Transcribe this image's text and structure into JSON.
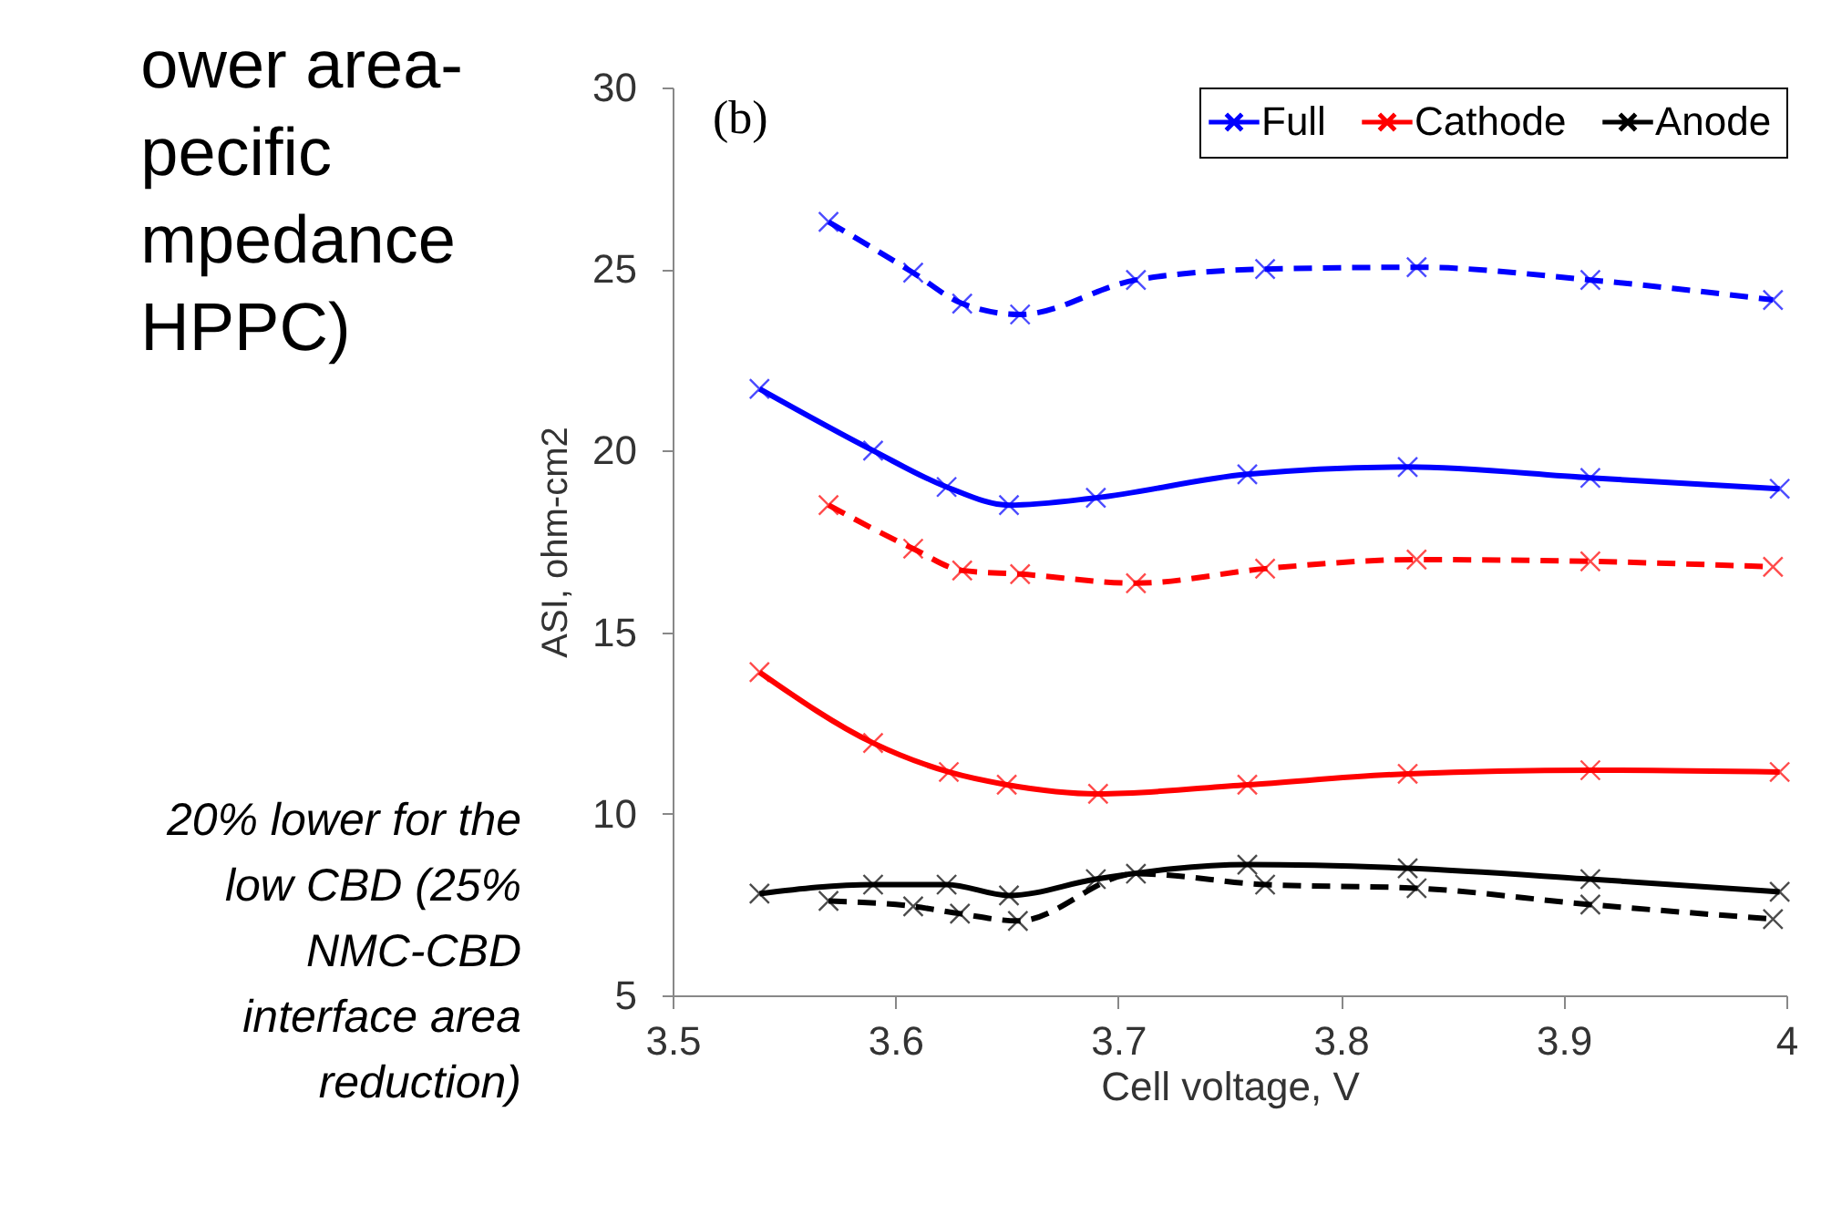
{
  "chart_data": {
    "type": "line",
    "xlabel": "Cell voltage, V",
    "ylabel": "ASI, ohm-cm2",
    "annotations": [
      "(b)",
      "ower area-\npecific\nmpedance\nHPPC)",
      "20% lower for the\nlow CBD (25%\nNMC-CBD\ninterface area\nreduction)"
    ],
    "xlim": [
      3.5,
      4
    ],
    "xticks": [
      3.5,
      3.6,
      3.7,
      3.8,
      3.9,
      4
    ],
    "ylim": [
      5,
      30
    ],
    "yticks": [
      5,
      10,
      15,
      20,
      25,
      30
    ],
    "grid": false,
    "legend": "top right",
    "marker": "cross",
    "series": [
      {
        "name": "Full",
        "color": "#0000ff",
        "line_style": "solid",
        "x": [
          3.539,
          3.59,
          3.623,
          3.651,
          3.69,
          3.758,
          3.83,
          3.912,
          3.997
        ],
        "values": [
          21.7,
          20.0,
          19.0,
          18.5,
          18.7,
          19.35,
          19.55,
          19.25,
          18.95
        ]
      },
      {
        "name": "Cathode",
        "color": "#ff0000",
        "line_style": "solid",
        "x": [
          3.539,
          3.59,
          3.624,
          3.65,
          3.691,
          3.758,
          3.83,
          3.912,
          3.997
        ],
        "values": [
          13.9,
          11.95,
          11.15,
          10.8,
          10.55,
          10.8,
          11.1,
          11.2,
          11.15
        ]
      },
      {
        "name": "Anode",
        "color": "#000000",
        "line_style": "solid",
        "x": [
          3.539,
          3.59,
          3.623,
          3.651,
          3.69,
          3.758,
          3.83,
          3.912,
          3.997
        ],
        "values": [
          7.8,
          8.05,
          8.05,
          7.75,
          8.2,
          8.6,
          8.5,
          8.2,
          7.85
        ]
      },
      {
        "color": "#0000ff",
        "line_style": "dashed",
        "x": [
          3.57,
          3.608,
          3.63,
          3.656,
          3.708,
          3.766,
          3.834,
          3.912,
          3.994
        ],
        "values": [
          26.3,
          24.9,
          24.05,
          23.75,
          24.7,
          25.0,
          25.05,
          24.7,
          24.15
        ]
      },
      {
        "color": "#ff0000",
        "line_style": "dashed",
        "x": [
          3.57,
          3.608,
          3.63,
          3.656,
          3.708,
          3.766,
          3.834,
          3.912,
          3.994
        ],
        "values": [
          18.5,
          17.3,
          16.7,
          16.6,
          16.35,
          16.75,
          17.0,
          16.95,
          16.8
        ]
      },
      {
        "color": "#000000",
        "line_style": "dashed",
        "x": [
          3.57,
          3.608,
          3.629,
          3.655,
          3.708,
          3.766,
          3.834,
          3.912,
          3.994
        ],
        "values": [
          7.6,
          7.45,
          7.25,
          7.05,
          8.35,
          8.05,
          7.95,
          7.5,
          7.1
        ]
      }
    ]
  }
}
